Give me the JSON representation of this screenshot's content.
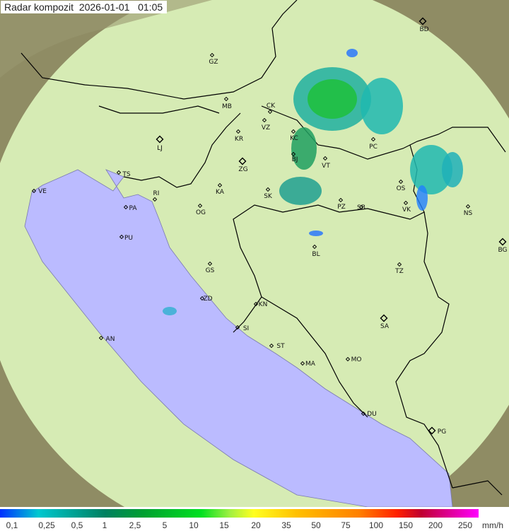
{
  "title": "Radar kompozit  2026-01-01   01:05",
  "colors": {
    "sea": "#bbbbff",
    "land": "#d6ebb4",
    "outside": "#8f8c64",
    "border": "#000000"
  },
  "cities": [
    "GZ",
    "BD",
    "MB",
    "CK",
    "VZ",
    "KR",
    "KC",
    "LJ",
    "ZG",
    "BJ",
    "VT",
    "PC",
    "TS",
    "VE",
    "RI",
    "KA",
    "SK",
    "PZ",
    "SB",
    "OS",
    "VK",
    "NS",
    "PA",
    "OG",
    "BG",
    "PU",
    "BL",
    "TZ",
    "GS",
    "ZD",
    "KN",
    "SA",
    "SI",
    "AN",
    "ST",
    "MO",
    "MA",
    "DU",
    "PG"
  ],
  "legend": {
    "unit": "mm/h",
    "ticks": [
      "0,1",
      "0,25",
      "0,5",
      "1",
      "2,5",
      "5",
      "10",
      "15",
      "20",
      "35",
      "50",
      "75",
      "100",
      "150",
      "200",
      "250"
    ]
  }
}
